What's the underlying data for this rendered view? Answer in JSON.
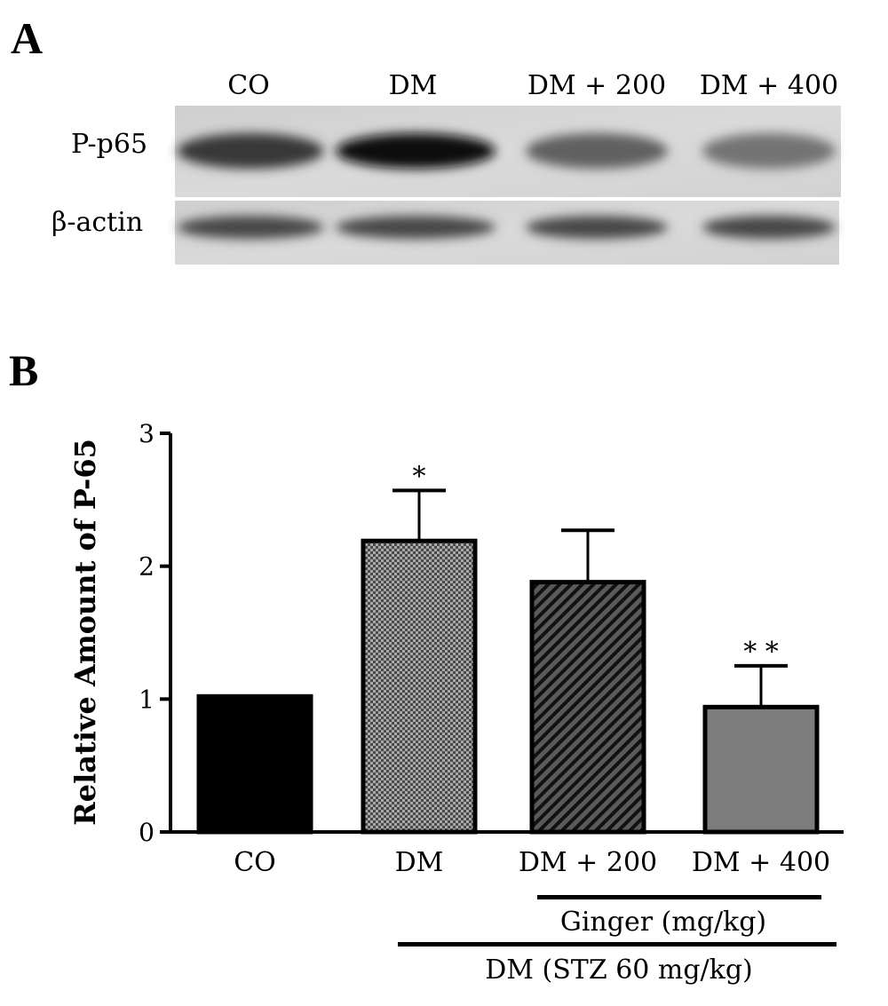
{
  "panels": {
    "a": "A",
    "b": "B"
  },
  "blot": {
    "lane_labels": [
      "CO",
      "DM",
      "DM + 200",
      "DM + 400"
    ],
    "row_labels": [
      "P-p65",
      "β-actin"
    ],
    "band_intensity": {
      "P-p65": [
        0.78,
        0.95,
        0.62,
        0.55
      ],
      "β-actin": [
        0.72,
        0.72,
        0.72,
        0.72
      ]
    }
  },
  "chart_data": {
    "type": "bar",
    "categories": [
      "CO",
      "DM",
      "DM + 200",
      "DM + 400"
    ],
    "values": [
      1.02,
      2.19,
      1.88,
      0.94
    ],
    "errors": [
      0,
      0.38,
      0.39,
      0.31
    ],
    "significance": [
      "",
      "*",
      "",
      "* *"
    ],
    "ylabel": "Relative Amount of P-65",
    "xlabel": "",
    "ylim": [
      0,
      3
    ],
    "yticks": [
      0,
      1,
      2,
      3
    ],
    "fills": [
      "solid-black",
      "dense-checker",
      "diagonal-hatch",
      "solid-gray"
    ],
    "grid": false
  },
  "groups": {
    "ginger": "Ginger (mg/kg)",
    "dm": "DM (STZ 60 mg/kg)"
  }
}
